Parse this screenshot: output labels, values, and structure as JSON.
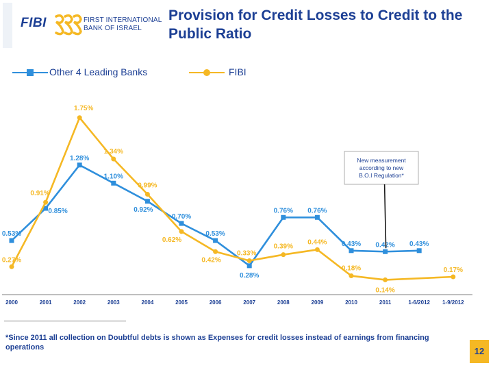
{
  "logo": {
    "brand": "FIBI",
    "line1": "FIRST INTERNATIONAL",
    "line2": "BANK OF ISRAEL"
  },
  "title": "Provision for Credit Losses to Credit to the Public Ratio",
  "colors": {
    "banks": "#2f8fdc",
    "fibi": "#f5b824",
    "text": "#1c3f94",
    "axis": "#7f7f7f"
  },
  "chart_data": {
    "type": "line",
    "categories": [
      "2000",
      "2001",
      "2002",
      "2003",
      "2004",
      "2005",
      "2006",
      "2007",
      "2008",
      "2009",
      "2010",
      "2011",
      "1-6/2012",
      "1-9/2012"
    ],
    "series": [
      {
        "name": "Other 4 Leading Banks",
        "values": [
          0.53,
          0.85,
          1.28,
          1.1,
          0.92,
          0.7,
          0.53,
          0.28,
          0.76,
          0.76,
          0.43,
          0.42,
          0.43,
          null
        ],
        "labels": [
          "0.53%",
          "0.85%",
          "1.28%",
          "1.10%",
          "0.92%",
          "0.70%",
          "0.53%",
          "0.28%",
          "0.76%",
          "0.76%",
          "0.43%",
          "0.42%",
          "0.43%",
          ""
        ]
      },
      {
        "name": "FIBI",
        "values": [
          0.27,
          0.91,
          1.75,
          1.34,
          0.99,
          0.62,
          0.42,
          0.33,
          0.39,
          0.44,
          0.18,
          0.14,
          null,
          0.17
        ],
        "labels": [
          "0.27%",
          "0.91%",
          "1.75%",
          "1.34%",
          "0.99%",
          "0.62%",
          "0.42%",
          "0.33%",
          "0.39%",
          "0.44%",
          "0.18%",
          "0.14%",
          "",
          "0.17%"
        ]
      }
    ],
    "ylim": [
      0,
      2.0
    ],
    "grid": false,
    "legend": "top",
    "annotation": {
      "text": "New measurement according to new B.O.I Regulation*",
      "category": "2011"
    }
  },
  "footnote": "*Since 2011 all collection on Doubtful debts is shown as Expenses for credit losses instead of earnings from financing operations",
  "page_number": "12"
}
